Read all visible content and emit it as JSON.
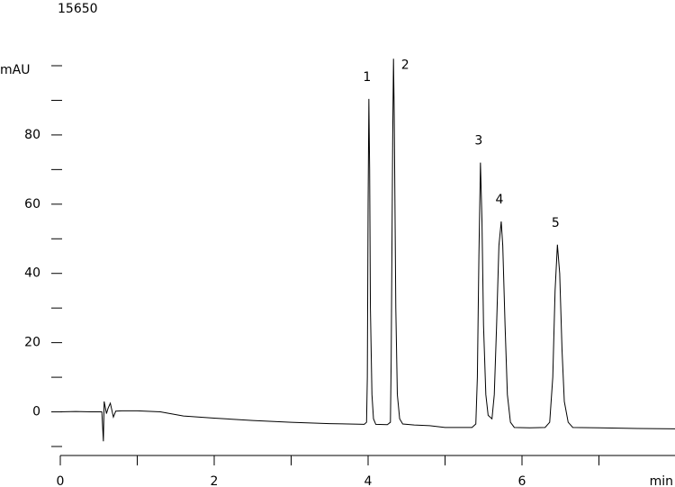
{
  "chart_data": {
    "type": "line",
    "title": "15650",
    "y_label": "mAU",
    "x_label": "min",
    "color": "#000000",
    "xlim": [
      0,
      8
    ],
    "xticks": [
      0,
      2,
      4,
      6
    ],
    "minor_xticks": [
      1,
      3,
      5,
      7
    ],
    "ylim": [
      -10,
      100
    ],
    "yticks": [
      0,
      20,
      40,
      60,
      80
    ],
    "minor_yticks": [
      -10,
      10,
      30,
      50,
      70,
      90,
      100
    ],
    "peak_labels": [
      "1",
      "2",
      "3",
      "4",
      "5"
    ],
    "x": [
      0,
      0.2,
      0.4,
      0.54,
      0.56,
      0.57,
      0.6,
      0.62,
      0.65,
      0.69,
      0.72,
      0.8,
      1.0,
      1.3,
      1.6,
      2.0,
      2.5,
      3.0,
      3.5,
      3.95,
      3.98,
      3.99,
      4.0,
      4.01,
      4.02,
      4.03,
      4.05,
      4.07,
      4.1,
      4.25,
      4.29,
      4.3,
      4.32,
      4.33,
      4.34,
      4.36,
      4.38,
      4.41,
      4.45,
      4.6,
      4.8,
      5.0,
      5.35,
      5.4,
      5.42,
      5.44,
      5.46,
      5.48,
      5.5,
      5.53,
      5.56,
      5.61,
      5.64,
      5.67,
      5.7,
      5.73,
      5.75,
      5.78,
      5.81,
      5.85,
      5.9,
      6.1,
      6.3,
      6.36,
      6.4,
      6.43,
      6.46,
      6.49,
      6.52,
      6.55,
      6.6,
      6.66,
      7.0,
      7.5,
      7.99
    ],
    "values": [
      0,
      0.1,
      0,
      0,
      -8.5,
      3,
      -0.5,
      1,
      2.5,
      -1.5,
      0.2,
      0.3,
      0.3,
      0,
      -1.2,
      -1.8,
      -2.5,
      -3,
      -3.4,
      -3.6,
      -3,
      10,
      60,
      90.4,
      70,
      30,
      5,
      -2,
      -3.6,
      -3.7,
      -3,
      15,
      80,
      102,
      85,
      30,
      5,
      -2,
      -3.5,
      -3.8,
      -4,
      -4.5,
      -4.5,
      -3.5,
      10,
      45,
      72,
      55,
      25,
      5,
      -1,
      -2,
      5,
      25,
      48,
      55,
      48,
      25,
      5,
      -3,
      -4.5,
      -4.6,
      -4.5,
      -3,
      10,
      35,
      48.3,
      40,
      18,
      3,
      -3,
      -4.5,
      -4.6,
      -4.8,
      -4.9
    ]
  }
}
